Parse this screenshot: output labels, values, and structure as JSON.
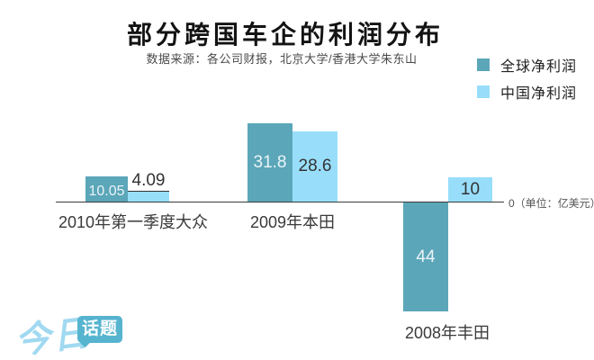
{
  "header": {
    "title": "部分跨国车企的利润分布",
    "subtitle": "数据来源：各公司财报，北京大学/香港大学朱东山"
  },
  "legend": [
    {
      "label": "全球净利润",
      "color": "#5ba6b9"
    },
    {
      "label": "中国净利润",
      "color": "#98defb"
    }
  ],
  "axis": {
    "zero_label": "0（单位：亿美元）"
  },
  "chart_data": {
    "type": "bar",
    "title": "部分跨国车企的利润分布",
    "unit": "亿美元",
    "categories": [
      "2010年第一季度大众",
      "2009年本田",
      "2008年丰田"
    ],
    "series": [
      {
        "name": "全球净利润",
        "color": "#5ba6b9",
        "values": [
          10.05,
          31.8,
          -44
        ]
      },
      {
        "name": "中国净利润",
        "color": "#98defb",
        "values": [
          4.09,
          28.6,
          10
        ]
      }
    ],
    "value_labels": [
      [
        "10.05",
        "31.8",
        "44"
      ],
      [
        "4.09",
        "28.6",
        "10"
      ]
    ],
    "baseline": 0,
    "grid": false,
    "legend_position": "top-right"
  },
  "logo": {
    "part1": "今日",
    "part2": "话题"
  }
}
